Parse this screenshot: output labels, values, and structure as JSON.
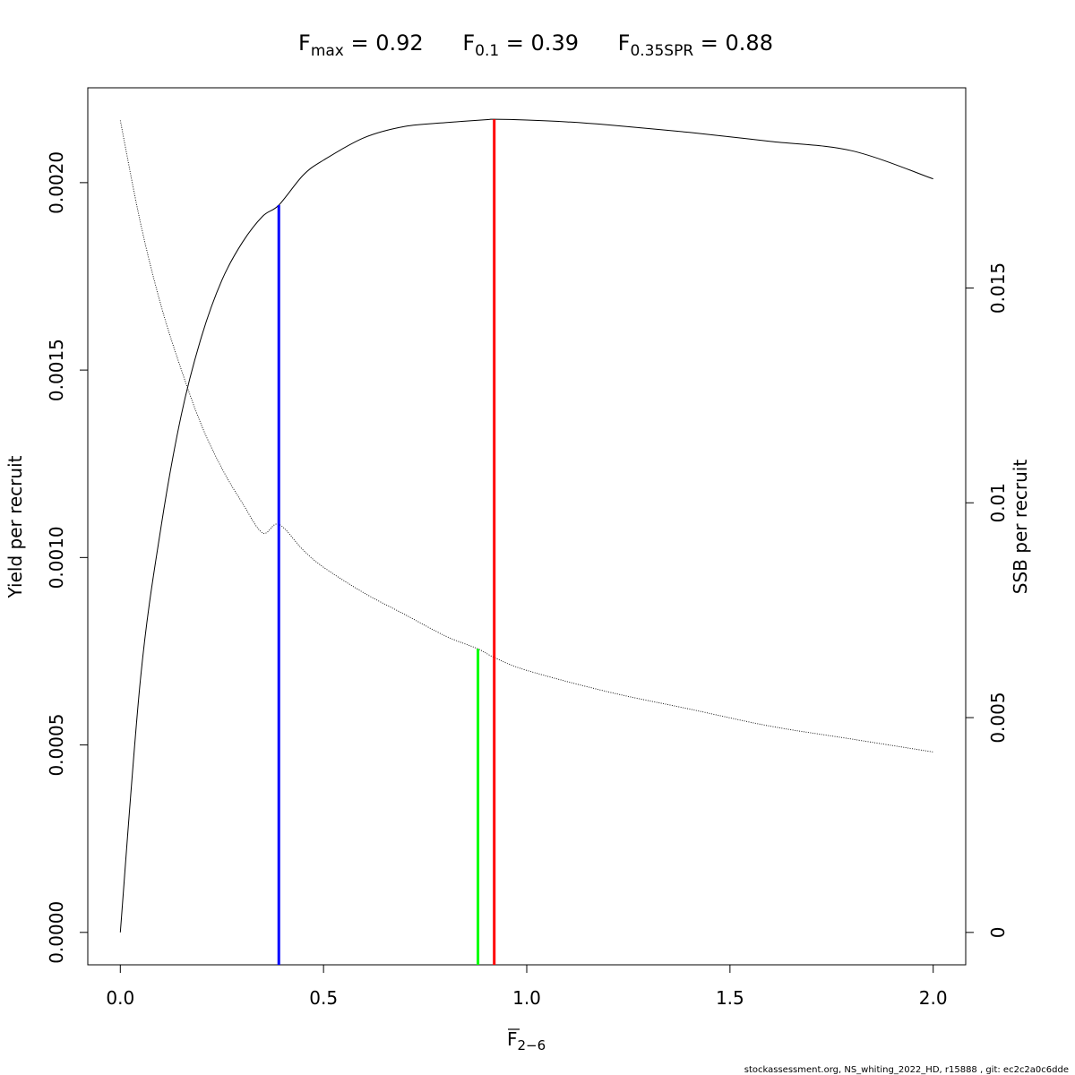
{
  "chart_data": {
    "type": "line",
    "title": {
      "fmax": {
        "sub": "max",
        "value_text": " = 0.92"
      },
      "f01": {
        "sub": "0.1",
        "value_text": " = 0.39"
      },
      "fspr": {
        "sub": "0.35SPR",
        "value_text": " = 0.88"
      }
    },
    "xlabel": {
      "main": "F",
      "sub": "2−6"
    },
    "ylabel_left": "Yield per recruit",
    "ylabel_right": "SSB per recruit",
    "xlim": [
      -0.08,
      2.08
    ],
    "ylim_left": [
      -8.65e-05,
      0.002253
    ],
    "ylim_right": [
      -0.000754,
      0.01966
    ],
    "x_ticks": [
      {
        "value": 0.0,
        "label": "0.0"
      },
      {
        "value": 0.5,
        "label": "0.5"
      },
      {
        "value": 1.0,
        "label": "1.0"
      },
      {
        "value": 1.5,
        "label": "1.5"
      },
      {
        "value": 2.0,
        "label": "2.0"
      }
    ],
    "y_left_ticks": [
      {
        "value": 0.0,
        "label": "0.0000"
      },
      {
        "value": 0.0005,
        "label": "0.0005"
      },
      {
        "value": 0.001,
        "label": "0.0010"
      },
      {
        "value": 0.0015,
        "label": "0.0015"
      },
      {
        "value": 0.002,
        "label": "0.0020"
      }
    ],
    "y_right_ticks": [
      {
        "value": 0.0,
        "label": "0"
      },
      {
        "value": 0.005,
        "label": "0.005"
      },
      {
        "value": 0.01,
        "label": "0.01"
      },
      {
        "value": 0.015,
        "label": "0.015"
      }
    ],
    "series": [
      {
        "axis": "left",
        "style": "solid",
        "color": "#000000",
        "x": [
          0.0,
          0.05,
          0.1,
          0.15,
          0.2,
          0.25,
          0.3,
          0.35,
          0.39,
          0.45,
          0.5,
          0.6,
          0.7,
          0.8,
          0.9,
          0.92,
          1.0,
          1.1,
          1.2,
          1.4,
          1.6,
          1.8,
          2.0
        ],
        "y": [
          0.0,
          0.00068,
          0.00108,
          0.00138,
          0.00159,
          0.00174,
          0.00184,
          0.00191,
          0.00194,
          0.00202,
          0.00206,
          0.00212,
          0.00215,
          0.00216,
          0.002168,
          0.002169,
          0.002167,
          0.002162,
          0.002154,
          0.002134,
          0.00211,
          0.002085,
          0.00201
        ]
      },
      {
        "axis": "right",
        "style": "dotted",
        "color": "#000000",
        "x": [
          0.0,
          0.05,
          0.1,
          0.15,
          0.2,
          0.25,
          0.3,
          0.35,
          0.39,
          0.45,
          0.5,
          0.6,
          0.7,
          0.8,
          0.88,
          0.92,
          1.0,
          1.2,
          1.4,
          1.6,
          1.8,
          2.0
        ],
        "y": [
          0.0189,
          0.0165,
          0.0146,
          0.0131,
          0.0118,
          0.0108,
          0.01,
          0.0093,
          0.0095,
          0.0089,
          0.0085,
          0.0079,
          0.0074,
          0.0069,
          0.0066,
          0.0064,
          0.0061,
          0.0056,
          0.0052,
          0.0048,
          0.0045,
          0.0042
        ]
      }
    ],
    "reference_lines": [
      {
        "name": "F0.1",
        "x": 0.39,
        "y_top": 0.00194,
        "axis": "left",
        "color": "#0000ff"
      },
      {
        "name": "F0.35SPR",
        "x": 0.88,
        "y_top": 0.0066,
        "axis": "right",
        "color": "#00ff00"
      },
      {
        "name": "Fmax",
        "x": 0.92,
        "y_top": 0.002169,
        "axis": "left",
        "color": "#ff0000"
      }
    ],
    "grid": false,
    "footer": "stockassessment.org, NS_whiting_2022_HD, r15888 , git: ec2c2a0c6dde"
  }
}
